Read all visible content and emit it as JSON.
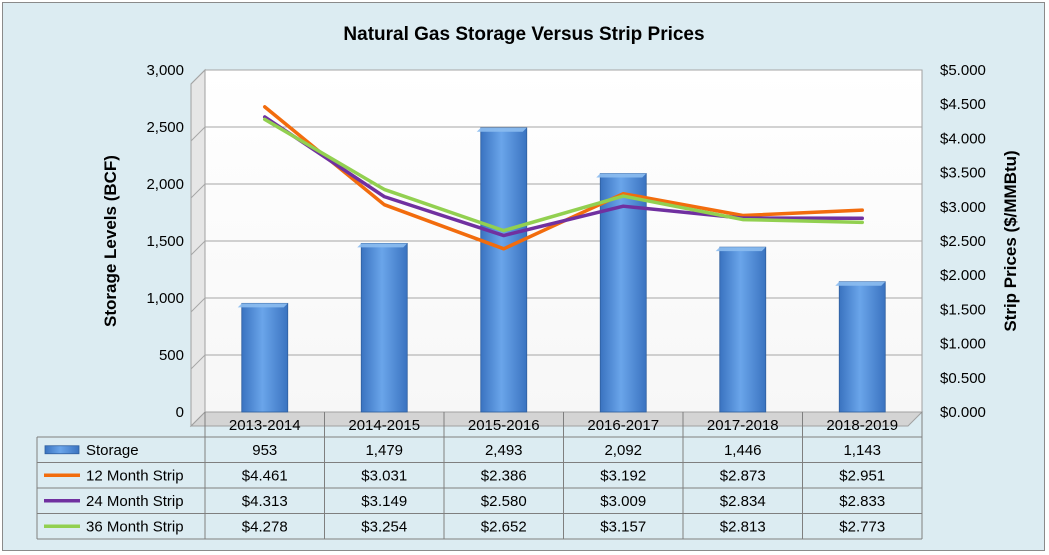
{
  "chart_data": {
    "type": "bar",
    "title": "Natural Gas Storage Versus Strip Prices",
    "ylabel": "Storage Levels (BCF)",
    "y2label": "Strip Prices ($/MMBtu)",
    "categories": [
      "2013-2014",
      "2014-2015",
      "2015-2016",
      "2016-2017",
      "2017-2018",
      "2018-2019"
    ],
    "ylim": [
      0,
      3000
    ],
    "y2lim": [
      0,
      5
    ],
    "yticks": [
      "0",
      "500",
      "1,000",
      "1,500",
      "2,000",
      "2,500",
      "3,000"
    ],
    "y2ticks": [
      "$0.000",
      "$0.500",
      "$1.000",
      "$1.500",
      "$2.000",
      "$2.500",
      "$3.000",
      "$3.500",
      "$4.000",
      "$4.500",
      "$5.000"
    ],
    "grid": true,
    "legend": "data-table",
    "series": [
      {
        "name": "Storage",
        "kind": "bar",
        "axis": "left",
        "color": "#4f8fdc",
        "values": [
          953,
          1479,
          2493,
          2092,
          1446,
          1143
        ],
        "labels": [
          "953",
          "1,479",
          "2,493",
          "2,092",
          "1,446",
          "1,143"
        ]
      },
      {
        "name": "12 Month Strip",
        "kind": "line",
        "axis": "right",
        "color": "#f26c0d",
        "values": [
          4.461,
          3.031,
          2.386,
          3.192,
          2.873,
          2.951
        ],
        "labels": [
          "$4.461",
          "$3.031",
          "$2.386",
          "$3.192",
          "$2.873",
          "$2.951"
        ]
      },
      {
        "name": "24 Month Strip",
        "kind": "line",
        "axis": "right",
        "color": "#7030a0",
        "values": [
          4.313,
          3.149,
          2.58,
          3.009,
          2.834,
          2.833
        ],
        "labels": [
          "$4.313",
          "$3.149",
          "$2.580",
          "$3.009",
          "$2.834",
          "$2.833"
        ]
      },
      {
        "name": "36 Month Strip",
        "kind": "line",
        "axis": "right",
        "color": "#92d050",
        "values": [
          4.278,
          3.254,
          2.652,
          3.157,
          2.813,
          2.773
        ],
        "labels": [
          "$4.278",
          "$3.254",
          "$2.652",
          "$3.157",
          "$2.813",
          "$2.773"
        ]
      }
    ]
  }
}
